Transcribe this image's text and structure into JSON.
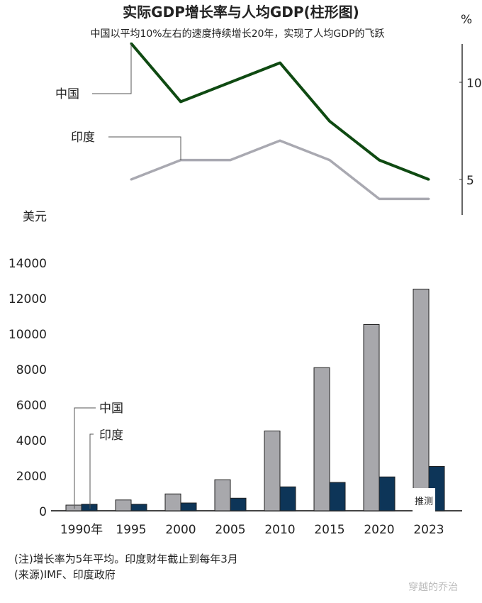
{
  "title": "实际GDP增长率与人均GDP(柱形图)",
  "subtitle": "中国以平均10%左右的速度持续增长20年，实现了人均GDP的飞跃",
  "notes": [
    "(注)增长率为5年平均。印度财年截止到每年3月",
    "(来源)IMF、印度政府"
  ],
  "watermark": "穿越的乔治",
  "colors": {
    "china_line": "#0f4a12",
    "india_line": "#a9a9b1",
    "china_bar": "#a8a8ac",
    "india_bar": "#0d3558"
  },
  "chart_data": [
    {
      "type": "line",
      "ylabel": "%",
      "yaxis_side": "right",
      "yticks": [
        "5",
        "10"
      ],
      "x": [
        "1995",
        "2000",
        "2005",
        "2010",
        "2015",
        "2020",
        "2023"
      ],
      "series": [
        {
          "name": "中国",
          "values": [
            12,
            9,
            10,
            11,
            8,
            6,
            5
          ]
        },
        {
          "name": "印度",
          "values": [
            5,
            6,
            6,
            7,
            6,
            4,
            4
          ]
        }
      ]
    },
    {
      "type": "bar",
      "ylabel": "美元",
      "ylim": [
        0,
        14000
      ],
      "yticks": [
        "0",
        "2000",
        "4000",
        "6000",
        "8000",
        "10000",
        "12000",
        "14000"
      ],
      "categories": [
        "1990年",
        "1995",
        "2000",
        "2005",
        "2010",
        "2015",
        "2020",
        "2023"
      ],
      "series": [
        {
          "name": "中国",
          "values": [
            320,
            610,
            950,
            1750,
            4500,
            8070,
            10500,
            12500
          ]
        },
        {
          "name": "印度",
          "values": [
            370,
            370,
            440,
            710,
            1350,
            1600,
            1910,
            2500
          ]
        }
      ],
      "annotation": "推测"
    }
  ]
}
